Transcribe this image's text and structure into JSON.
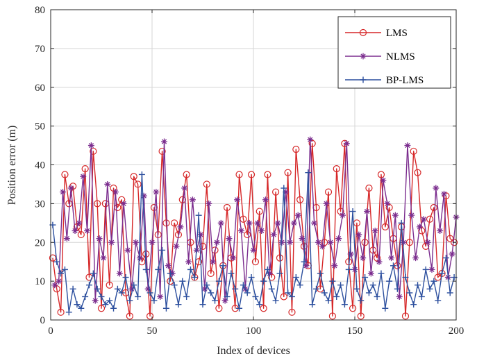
{
  "chart_data": {
    "type": "line",
    "title": "",
    "xlabel": "Index of devices",
    "ylabel": "Position error (m)",
    "xlim": [
      0,
      200
    ],
    "ylim": [
      0,
      80
    ],
    "xticks": [
      0,
      50,
      100,
      150,
      200
    ],
    "yticks": [
      0,
      10,
      20,
      30,
      40,
      50,
      60,
      70,
      80
    ],
    "grid": true,
    "legend_position": "top-right",
    "series": [
      {
        "name": "LMS",
        "color": "#d62728",
        "marker": "circle",
        "x": [
          1,
          3,
          5,
          7,
          9,
          11,
          13,
          15,
          17,
          19,
          21,
          23,
          25,
          27,
          29,
          31,
          33,
          35,
          37,
          39,
          41,
          43,
          45,
          47,
          49,
          51,
          53,
          55,
          57,
          59,
          61,
          63,
          65,
          67,
          69,
          71,
          73,
          75,
          77,
          79,
          81,
          83,
          85,
          87,
          89,
          91,
          93,
          95,
          97,
          99,
          101,
          103,
          105,
          107,
          109,
          111,
          113,
          115,
          117,
          119,
          121,
          123,
          125,
          127,
          129,
          131,
          133,
          135,
          137,
          139,
          141,
          143,
          145,
          147,
          149,
          151,
          153,
          155,
          157,
          159,
          161,
          163,
          165,
          167,
          169,
          171,
          173,
          175,
          177,
          179,
          181,
          183,
          185,
          187,
          189,
          191,
          193,
          195,
          197,
          199
        ],
        "values": [
          16,
          8,
          2,
          37.5,
          30,
          34.5,
          24,
          22,
          39,
          11,
          43.5,
          30,
          3,
          30,
          9,
          34,
          29,
          31,
          7,
          1,
          37,
          35,
          15,
          17,
          1,
          29,
          22,
          43.5,
          25,
          10,
          25,
          22,
          31,
          37.5,
          20,
          11,
          15,
          19,
          35,
          12,
          18,
          3,
          14,
          29,
          16,
          3,
          37.5,
          26,
          22,
          37.5,
          15,
          28,
          3,
          37.5,
          11,
          33,
          16,
          6,
          38,
          2,
          44,
          31,
          19,
          14,
          45.5,
          29,
          8,
          20,
          33,
          1,
          39,
          28,
          45.5,
          15,
          3,
          25,
          1,
          20,
          34,
          18,
          16,
          37.5,
          24,
          29,
          21,
          14,
          24,
          1,
          20,
          43.5,
          38,
          23,
          19,
          26,
          29,
          11,
          12,
          32,
          21,
          20
        ]
      },
      {
        "name": "NLMS",
        "color": "#7b2d8e",
        "marker": "asterisk",
        "x": [
          2,
          4,
          6,
          8,
          10,
          12,
          14,
          16,
          18,
          20,
          22,
          24,
          26,
          28,
          30,
          32,
          34,
          36,
          38,
          40,
          42,
          44,
          46,
          48,
          50,
          52,
          54,
          56,
          58,
          60,
          62,
          64,
          66,
          68,
          70,
          72,
          74,
          76,
          78,
          80,
          82,
          84,
          86,
          88,
          90,
          92,
          94,
          96,
          98,
          100,
          102,
          104,
          106,
          108,
          110,
          112,
          114,
          116,
          118,
          120,
          122,
          124,
          126,
          128,
          130,
          132,
          134,
          136,
          138,
          140,
          142,
          144,
          146,
          148,
          150,
          152,
          154,
          156,
          158,
          160,
          162,
          164,
          166,
          168,
          170,
          172,
          174,
          176,
          178,
          180,
          182,
          184,
          186,
          188,
          190,
          192,
          194,
          196,
          198,
          200
        ],
        "values": [
          9,
          10,
          33,
          21,
          34,
          23,
          25,
          37,
          23,
          45,
          5,
          21,
          16,
          35,
          20,
          33,
          12,
          30,
          18,
          8,
          20,
          16,
          32,
          8,
          20,
          33,
          6,
          46,
          14,
          12,
          19,
          24,
          34,
          15,
          31,
          18,
          22,
          8,
          30,
          15,
          20,
          25,
          5,
          21,
          16,
          31,
          23,
          8,
          25,
          18,
          25,
          23,
          31,
          12,
          22,
          25,
          20,
          33,
          20,
          25,
          27,
          21,
          14,
          46.5,
          25,
          20,
          19,
          30,
          20,
          14,
          21,
          27,
          45.5,
          17,
          13,
          22,
          16,
          28,
          12,
          23,
          15,
          36,
          30,
          16,
          27,
          6,
          20,
          45,
          27,
          16,
          24,
          26,
          20,
          13,
          34,
          23,
          32.5,
          11,
          17,
          26.5
        ]
      },
      {
        "name": "BP-LMS",
        "color": "#2c4f9e",
        "marker": "plus",
        "x": [
          1,
          3,
          5,
          7,
          9,
          11,
          13,
          15,
          17,
          19,
          21,
          23,
          25,
          27,
          29,
          31,
          33,
          35,
          37,
          39,
          41,
          43,
          45,
          47,
          49,
          51,
          53,
          55,
          57,
          59,
          61,
          63,
          65,
          67,
          69,
          71,
          73,
          75,
          77,
          79,
          81,
          83,
          85,
          87,
          89,
          91,
          93,
          95,
          97,
          99,
          101,
          103,
          105,
          107,
          109,
          111,
          113,
          115,
          117,
          119,
          121,
          123,
          125,
          127,
          129,
          131,
          133,
          135,
          137,
          139,
          141,
          143,
          145,
          147,
          149,
          151,
          153,
          155,
          157,
          159,
          161,
          163,
          165,
          167,
          169,
          171,
          173,
          175,
          177,
          179,
          181,
          183,
          185,
          187,
          189,
          191,
          193,
          195,
          197,
          199
        ],
        "values": [
          24.5,
          15,
          12,
          13,
          2,
          8,
          4,
          3,
          6,
          9,
          12,
          8,
          6,
          4,
          5,
          3,
          8,
          7,
          11,
          5,
          9,
          6,
          37.5,
          13,
          7,
          5,
          13,
          18,
          3,
          12,
          9,
          4,
          10,
          6,
          13,
          11,
          27,
          4,
          9,
          7,
          5,
          10,
          14,
          6,
          12,
          8,
          3,
          9,
          7,
          11,
          6,
          4,
          10,
          13,
          8,
          5,
          12,
          34,
          7,
          6,
          11,
          9,
          15,
          38,
          4,
          8,
          12,
          7,
          5,
          10,
          6,
          9,
          4,
          13,
          28,
          8,
          5,
          11,
          7,
          9,
          6,
          12,
          3,
          10,
          14,
          8,
          25,
          11,
          7,
          4,
          9,
          6,
          13,
          8,
          10,
          5,
          12,
          16,
          7,
          11
        ]
      }
    ]
  }
}
